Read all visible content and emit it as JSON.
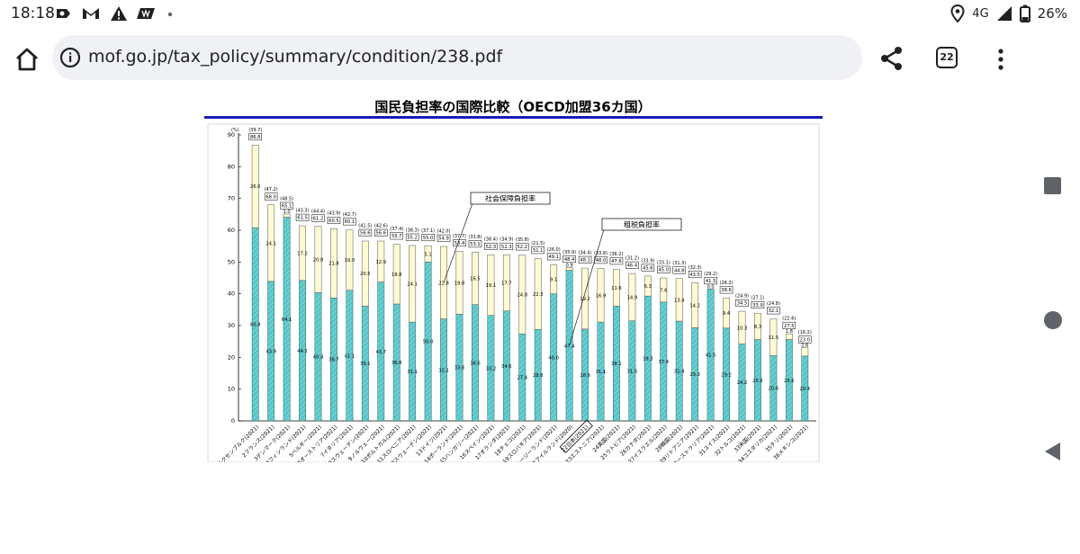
{
  "status": {
    "time": "18:18",
    "network": "4G",
    "battery": "26%",
    "left_icons": [
      "notification-icon",
      "gmail-icon",
      "warning-icon",
      "app-icon"
    ],
    "right_icons": [
      "location-icon",
      "signal-icon",
      "battery-icon"
    ]
  },
  "browser": {
    "url": "mof.go.jp/tax_policy/summary/condition/238.pdf",
    "tab_count": "22"
  },
  "chart_data": {
    "type": "bar",
    "stacked": true,
    "title": "国民負担率の国際比較（OECD加盟36カ国）",
    "ylabel": "(%)",
    "ylim": [
      0,
      90
    ],
    "yticks": [
      0,
      10,
      20,
      30,
      40,
      50,
      60,
      70,
      80,
      90
    ],
    "categories": [
      "1ルクセンブルク(2021)",
      "2フランス(2021)",
      "3デンマーク(2021)",
      "4フィンランド(2021)",
      "5ベルギー(2021)",
      "6オーストリア(2021)",
      "7イタリア(2021)",
      "8スウェーデン(2021)",
      "9ノルウェー(2021)",
      "10ポルトガル(2021)",
      "11スロベニア(2021)",
      "12スウェーデン(2021)",
      "13ドイツ(2021)",
      "14ポーランド(2021)",
      "15ハンガリー(2021)",
      "16スペイン(2021)",
      "17オランダ(2021)",
      "18チェコ(2021)",
      "19スロバキア(2021)",
      "20ニュージーランド(2021)",
      "21アイルランド(2020)",
      "22日本(2021)",
      "23エストニア(2021)",
      "24英国(2021)",
      "25ラトビア(2021)",
      "26カナダ(2021)",
      "27イスラエル(2021)",
      "28韓国(2021)",
      "29リトアニア(2021)",
      "30オーストラリア(2021)",
      "31スイス(2021)",
      "32トルコ(2021)",
      "33米国(2021)",
      "34コスタリカ(2021)",
      "35チリ(2021)",
      "36メキシコ(2021)"
    ],
    "series": [
      {
        "name": "租税負担率",
        "values": [
          60.8,
          43.9,
          64.1,
          44.2,
          40.4,
          38.7,
          41.1,
          36.1,
          43.7,
          36.8,
          31.1,
          50.0,
          32.1,
          33.6,
          36.6,
          33.2,
          34.6,
          27.4,
          28.8,
          40.0,
          47.4,
          28.9,
          31.1,
          36.1,
          31.5,
          39.3,
          37.4,
          31.4,
          29.3,
          41.5,
          29.2,
          24.2,
          25.6,
          20.6,
          25.6,
          20.4
        ]
      },
      {
        "name": "社会保障負担率",
        "values": [
          26.0,
          24.1,
          1.0,
          17.2,
          20.8,
          21.8,
          19.0,
          20.5,
          12.9,
          18.8,
          24.1,
          5.1,
          22.8,
          19.8,
          16.5,
          19.1,
          17.7,
          24.8,
          22.3,
          9.1,
          0.9,
          19.2,
          16.9,
          11.6,
          14.9,
          6.3,
          7.6,
          13.4,
          14.2,
          0.0,
          9.4,
          10.3,
          8.3,
          11.5,
          1.8,
          2.6
        ]
      }
    ],
    "totals": [
      86.8,
      68.0,
      65.1,
      61.5,
      61.2,
      60.5,
      60.1,
      56.6,
      56.6,
      55.7,
      55.2,
      55.0,
      54.9,
      53.4,
      53.1,
      52.3,
      52.3,
      52.2,
      51.1,
      49.1,
      48.4,
      48.1,
      48.0,
      47.6,
      46.4,
      45.6,
      45.0,
      44.8,
      43.5,
      41.5,
      38.6,
      34.5,
      33.9,
      32.1,
      27.5,
      23.0
    ],
    "gdp_ratio_labels": [
      "(39.7)",
      "(47.2)",
      "(48.5)",
      "(43.3)",
      "(44.4)",
      "(43.9)",
      "(42.7)",
      "(41.5)",
      "(42.6)",
      "(37.4)",
      "(38.3)",
      "(37.1)",
      "(42.0)",
      "(37.7)",
      "(33.8)",
      "(38.4)",
      "(34.9)",
      "(35.8)",
      "(21.5)",
      "(26.0)",
      "(35.9)",
      "(34.4)",
      "(33.8)",
      "(36.2)",
      "(31.2)",
      "(33.9)",
      "(33.1)",
      "(31.3)",
      "(32.3)",
      "(29.2)",
      "(28.2)",
      "(24.9)",
      "(27.1)",
      "(24.8)",
      "(22.6)",
      "(16.2)"
    ],
    "annotations": [
      "社会保障負担率",
      "租税負担率"
    ],
    "highlight_category_index": 21,
    "colors": {
      "tax": "#5fd3d3",
      "social": "#fffbd0",
      "stroke": "#555555",
      "title_rule": "#1a1ab8"
    },
    "grid": true
  }
}
